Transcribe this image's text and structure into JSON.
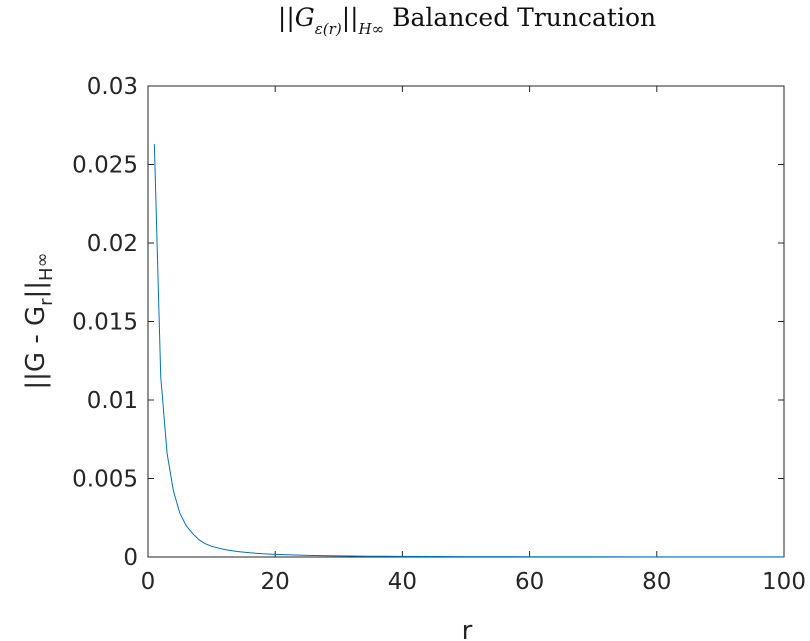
{
  "chart_data": {
    "type": "line",
    "title": "||G_ε(r)||_H∞ Balanced Truncation",
    "title_parts": {
      "norm_open": "||",
      "G": "G",
      "sub": "ε(r)",
      "norm_close": "||",
      "H": "H",
      "inf": "∞",
      "rest": "Balanced Truncation"
    },
    "xlabel": "r",
    "ylabel": "||G - G_r||_H∞",
    "ylabel_parts": {
      "main": "||G - G",
      "sub1": "r",
      "mid": "||",
      "sub2": "H",
      "sub3": "∞"
    },
    "xlim": [
      0,
      100
    ],
    "ylim": [
      0,
      0.03
    ],
    "xticks": [
      "0",
      "20",
      "40",
      "60",
      "80",
      "100"
    ],
    "yticks": [
      "0",
      "0.005",
      "0.01",
      "0.015",
      "0.02",
      "0.025",
      "0.03"
    ],
    "grid": false,
    "series": [
      {
        "color": "#0072BD",
        "x": [
          1,
          2,
          3,
          4,
          5,
          6,
          7,
          8,
          9,
          10,
          12,
          14,
          16,
          18,
          20,
          25,
          30,
          35,
          40,
          50,
          60,
          70,
          80,
          90,
          100
        ],
        "y": [
          0.0263,
          0.0115,
          0.0066,
          0.0042,
          0.0028,
          0.002,
          0.0015,
          0.0011,
          0.00085,
          0.00068,
          0.00048,
          0.00035,
          0.00027,
          0.00021,
          0.00017,
          0.0001,
          7e-05,
          5e-05,
          4e-05,
          2.5e-05,
          1.8e-05,
          1.3e-05,
          1e-05,
          8e-06,
          6e-06
        ]
      }
    ]
  }
}
